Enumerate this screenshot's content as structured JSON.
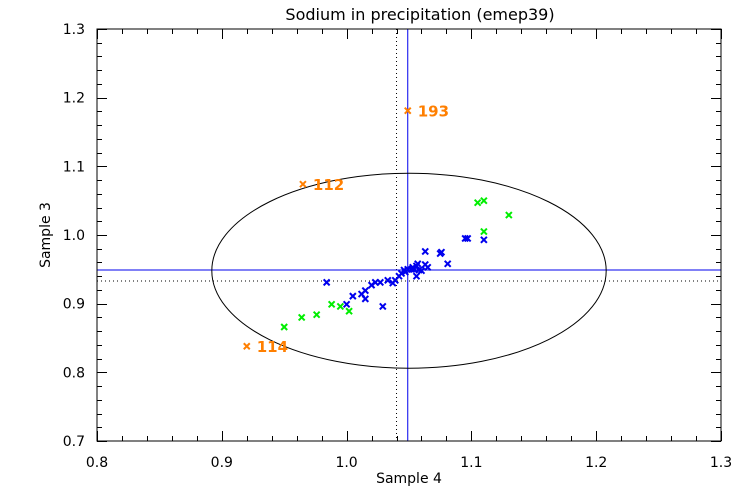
{
  "chart_data": {
    "type": "scatter",
    "title": "Sodium in precipitation (emep39)",
    "xlabel": "Sample 4",
    "ylabel": "Sample 3",
    "xlim": [
      0.8,
      1.3
    ],
    "ylim": [
      0.7,
      1.3
    ],
    "xticks": [
      "0.8",
      "0.9",
      "1.0",
      "1.1",
      "1.2",
      "1.3"
    ],
    "yticks": [
      "0.7",
      "0.8",
      "0.9",
      "1.0",
      "1.1",
      "1.2",
      "1.3"
    ],
    "xtick_values": [
      0.8,
      0.9,
      1.0,
      1.1,
      1.2,
      1.3
    ],
    "ytick_values": [
      0.7,
      0.8,
      0.9,
      1.0,
      1.1,
      1.2,
      1.3
    ],
    "grid": false,
    "colors": {
      "blue": "#0000ee",
      "green": "#00ee00",
      "orange": "#ff7f00",
      "axis": "#000000"
    },
    "reference_lines": {
      "median_x": 1.049,
      "median_y": 0.949,
      "assigned_x": 1.04,
      "assigned_y": 0.933
    },
    "ellipse": {
      "center_x": 1.05,
      "center_y": 0.948,
      "semi_x": 0.158,
      "semi_y": 0.142
    },
    "series": [
      {
        "name": "blue",
        "points": [
          [
            0.984,
            0.931
          ],
          [
            1.0,
            0.899
          ],
          [
            1.005,
            0.911
          ],
          [
            1.012,
            0.914
          ],
          [
            1.015,
            0.907
          ],
          [
            1.015,
            0.919
          ],
          [
            1.02,
            0.927
          ],
          [
            1.023,
            0.931
          ],
          [
            1.027,
            0.931
          ],
          [
            1.029,
            0.896
          ],
          [
            1.033,
            0.934
          ],
          [
            1.037,
            0.93
          ],
          [
            1.039,
            0.934
          ],
          [
            1.042,
            0.94
          ],
          [
            1.044,
            0.944
          ],
          [
            1.046,
            0.949
          ],
          [
            1.047,
            0.946
          ],
          [
            1.049,
            0.95
          ],
          [
            1.052,
            0.95
          ],
          [
            1.053,
            0.953
          ],
          [
            1.054,
            0.95
          ],
          [
            1.056,
            0.955
          ],
          [
            1.056,
            0.94
          ],
          [
            1.057,
            0.958
          ],
          [
            1.058,
            0.949
          ],
          [
            1.06,
            0.948
          ],
          [
            1.063,
            0.976
          ],
          [
            1.063,
            0.957
          ],
          [
            1.065,
            0.953
          ],
          [
            1.075,
            0.973
          ],
          [
            1.076,
            0.975
          ],
          [
            1.081,
            0.958
          ],
          [
            1.095,
            0.995
          ],
          [
            1.097,
            0.995
          ],
          [
            1.11,
            0.993
          ]
        ]
      },
      {
        "name": "green",
        "points": [
          [
            0.95,
            0.866
          ],
          [
            0.964,
            0.88
          ],
          [
            0.976,
            0.884
          ],
          [
            0.988,
            0.899
          ],
          [
            0.995,
            0.896
          ],
          [
            1.002,
            0.889
          ],
          [
            1.105,
            1.047
          ],
          [
            1.11,
            1.05
          ],
          [
            1.11,
            1.005
          ],
          [
            1.13,
            1.029
          ]
        ]
      },
      {
        "name": "outliers",
        "points": [
          {
            "x": 1.049,
            "y": 1.181,
            "label": "193"
          },
          {
            "x": 0.965,
            "y": 1.074,
            "label": "112"
          },
          {
            "x": 0.92,
            "y": 0.838,
            "label": "114"
          }
        ]
      }
    ]
  }
}
